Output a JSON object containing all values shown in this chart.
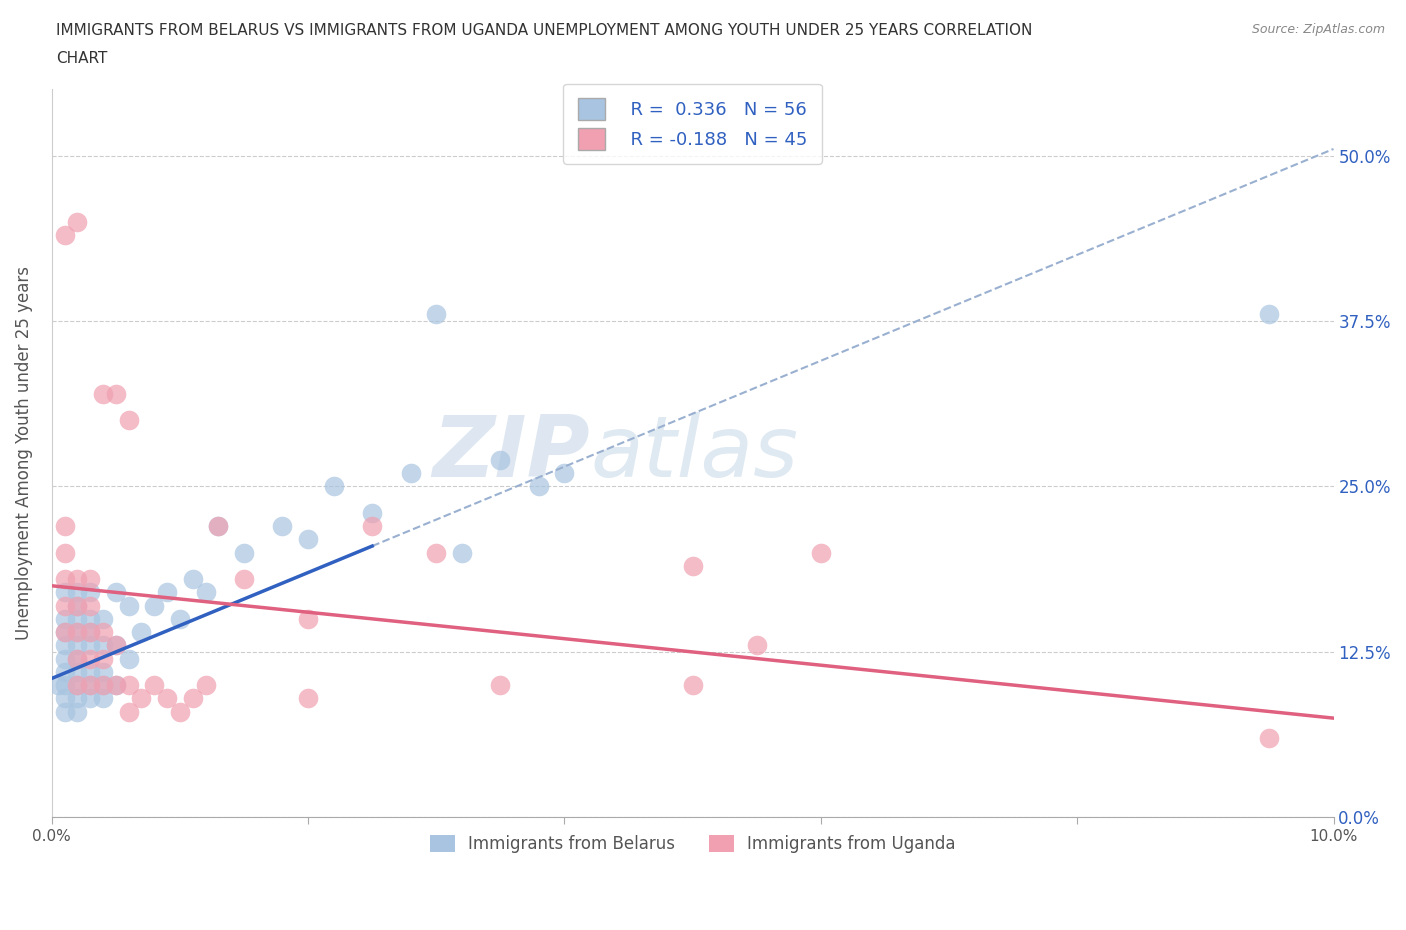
{
  "title_line1": "IMMIGRANTS FROM BELARUS VS IMMIGRANTS FROM UGANDA UNEMPLOYMENT AMONG YOUTH UNDER 25 YEARS CORRELATION",
  "title_line2": "CHART",
  "source": "Source: ZipAtlas.com",
  "ylabel": "Unemployment Among Youth under 25 years",
  "xlim": [
    0.0,
    0.1
  ],
  "ylim": [
    0.0,
    0.55
  ],
  "yticks": [
    0.0,
    0.125,
    0.25,
    0.375,
    0.5
  ],
  "yticklabels": [
    "0.0%",
    "12.5%",
    "25.0%",
    "37.5%",
    "50.0%"
  ],
  "xticks": [
    0.0,
    0.02,
    0.04,
    0.06,
    0.08,
    0.1
  ],
  "xticklabels": [
    "0.0%",
    "",
    "",
    "",
    "",
    "10.0%"
  ],
  "belarus_color": "#a8c4e0",
  "uganda_color": "#f0a0b0",
  "belarus_line_color": "#3060c0",
  "belarus_dash_color": "#9ab0d0",
  "uganda_line_color": "#e06080",
  "legend_R_belarus": "R =  0.336   N = 56",
  "legend_R_uganda": "R = -0.188   N = 45",
  "watermark_1": "ZIP",
  "watermark_2": "atlas",
  "belarus_label": "Immigrants from Belarus",
  "uganda_label": "Immigrants from Uganda",
  "belarus_x": [
    0.0005,
    0.001,
    0.001,
    0.001,
    0.001,
    0.001,
    0.001,
    0.001,
    0.001,
    0.001,
    0.002,
    0.002,
    0.002,
    0.002,
    0.002,
    0.002,
    0.002,
    0.002,
    0.002,
    0.002,
    0.003,
    0.003,
    0.003,
    0.003,
    0.003,
    0.003,
    0.003,
    0.004,
    0.004,
    0.004,
    0.004,
    0.004,
    0.005,
    0.005,
    0.005,
    0.006,
    0.006,
    0.007,
    0.008,
    0.009,
    0.01,
    0.011,
    0.012,
    0.013,
    0.015,
    0.018,
    0.02,
    0.022,
    0.025,
    0.028,
    0.03,
    0.032,
    0.035,
    0.038,
    0.04,
    0.095
  ],
  "belarus_y": [
    0.1,
    0.08,
    0.09,
    0.1,
    0.11,
    0.12,
    0.13,
    0.14,
    0.15,
    0.17,
    0.08,
    0.09,
    0.1,
    0.11,
    0.12,
    0.13,
    0.14,
    0.15,
    0.16,
    0.17,
    0.09,
    0.1,
    0.11,
    0.13,
    0.14,
    0.15,
    0.17,
    0.09,
    0.1,
    0.11,
    0.13,
    0.15,
    0.1,
    0.13,
    0.17,
    0.12,
    0.16,
    0.14,
    0.16,
    0.17,
    0.15,
    0.18,
    0.17,
    0.22,
    0.2,
    0.22,
    0.21,
    0.25,
    0.23,
    0.26,
    0.38,
    0.2,
    0.27,
    0.25,
    0.26,
    0.38
  ],
  "uganda_x": [
    0.001,
    0.001,
    0.001,
    0.001,
    0.001,
    0.001,
    0.002,
    0.002,
    0.002,
    0.002,
    0.002,
    0.002,
    0.003,
    0.003,
    0.003,
    0.003,
    0.003,
    0.004,
    0.004,
    0.004,
    0.004,
    0.005,
    0.005,
    0.005,
    0.006,
    0.006,
    0.006,
    0.007,
    0.008,
    0.009,
    0.01,
    0.011,
    0.012,
    0.013,
    0.015,
    0.02,
    0.025,
    0.03,
    0.035,
    0.05,
    0.055,
    0.06,
    0.095,
    0.05,
    0.02
  ],
  "uganda_y": [
    0.14,
    0.16,
    0.18,
    0.2,
    0.22,
    0.44,
    0.1,
    0.12,
    0.14,
    0.16,
    0.18,
    0.45,
    0.1,
    0.12,
    0.14,
    0.16,
    0.18,
    0.1,
    0.12,
    0.14,
    0.32,
    0.1,
    0.13,
    0.32,
    0.08,
    0.1,
    0.3,
    0.09,
    0.1,
    0.09,
    0.08,
    0.09,
    0.1,
    0.22,
    0.18,
    0.15,
    0.22,
    0.2,
    0.1,
    0.19,
    0.13,
    0.2,
    0.06,
    0.1,
    0.09
  ]
}
